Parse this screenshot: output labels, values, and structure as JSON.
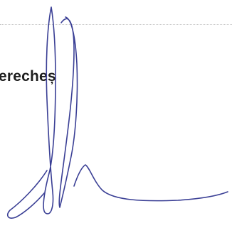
{
  "document": {
    "name_fragment": "erecheș"
  },
  "signature": {
    "kind": "handwritten signature",
    "ink_color": "#3a3f95"
  }
}
